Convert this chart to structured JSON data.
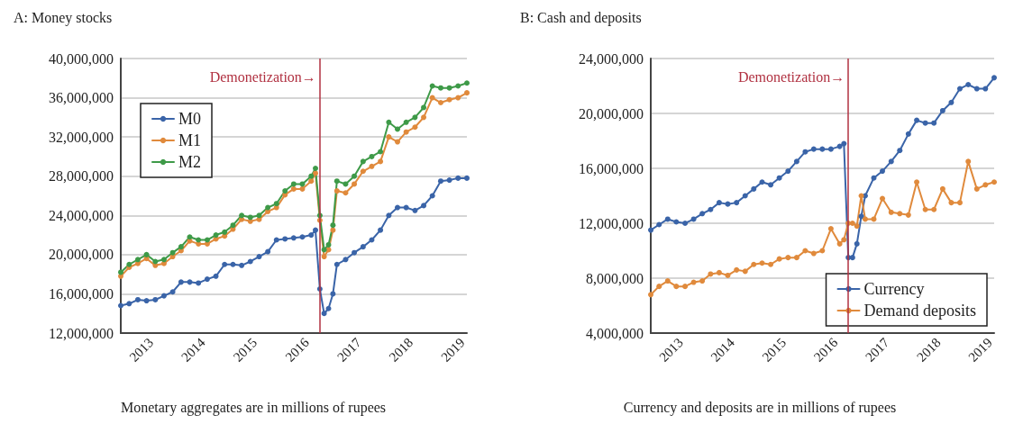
{
  "chart_data": [
    {
      "type": "line",
      "title": "A: Money stocks",
      "annotations": [
        "Monetary aggregates are in millions of rupees"
      ],
      "x": [
        "2013-01",
        "2013-03",
        "2013-05",
        "2013-07",
        "2013-09",
        "2013-11",
        "2014-01",
        "2014-03",
        "2014-05",
        "2014-07",
        "2014-09",
        "2014-11",
        "2015-01",
        "2015-03",
        "2015-05",
        "2015-07",
        "2015-09",
        "2015-11",
        "2016-01",
        "2016-03",
        "2016-05",
        "2016-07",
        "2016-09",
        "2016-10",
        "2016-11",
        "2016-12",
        "2017-01",
        "2017-02",
        "2017-03",
        "2017-05",
        "2017-07",
        "2017-09",
        "2017-11",
        "2018-01",
        "2018-03",
        "2018-05",
        "2018-07",
        "2018-09",
        "2018-11",
        "2019-01",
        "2019-03",
        "2019-05",
        "2019-07",
        "2019-09"
      ],
      "series": [
        {
          "name": "M0",
          "color": "#3a64a8",
          "values": [
            14800000,
            15000000,
            15400000,
            15300000,
            15400000,
            15800000,
            16200000,
            17200000,
            17200000,
            17100000,
            17500000,
            17800000,
            19000000,
            19000000,
            18900000,
            19300000,
            19800000,
            20300000,
            21500000,
            21600000,
            21700000,
            21800000,
            22000000,
            22500000,
            16500000,
            14000000,
            14500000,
            16000000,
            19000000,
            19500000,
            20200000,
            20800000,
            21500000,
            22500000,
            24000000,
            24800000,
            24800000,
            24500000,
            25000000,
            26000000,
            27500000,
            27600000,
            27800000,
            27800000
          ]
        },
        {
          "name": "M1",
          "color": "#e08a3c",
          "values": [
            17800000,
            18700000,
            19100000,
            19600000,
            18900000,
            19100000,
            19800000,
            20400000,
            21400000,
            21100000,
            21100000,
            21600000,
            21900000,
            22600000,
            23600000,
            23400000,
            23600000,
            24400000,
            24800000,
            26100000,
            26700000,
            26700000,
            27500000,
            28300000,
            23500000,
            19800000,
            20500000,
            22500000,
            26500000,
            26300000,
            27200000,
            28500000,
            29000000,
            29500000,
            32000000,
            31500000,
            32500000,
            33000000,
            34000000,
            36000000,
            35500000,
            35800000,
            36000000,
            36500000
          ]
        },
        {
          "name": "M2",
          "color": "#3e9a48",
          "values": [
            18200000,
            19000000,
            19500000,
            20000000,
            19300000,
            19500000,
            20200000,
            20800000,
            21800000,
            21500000,
            21500000,
            22000000,
            22300000,
            23000000,
            24000000,
            23800000,
            24000000,
            24800000,
            25200000,
            26500000,
            27200000,
            27200000,
            28000000,
            28800000,
            24000000,
            20500000,
            21000000,
            23000000,
            27500000,
            27200000,
            28000000,
            29500000,
            30000000,
            30500000,
            33500000,
            32800000,
            33500000,
            34000000,
            35000000,
            37200000,
            37000000,
            37000000,
            37200000,
            37500000
          ]
        }
      ],
      "xlim": [
        "2013-01",
        "2019-09"
      ],
      "xticks": [
        {
          "value": "2013-08",
          "label": "2013"
        },
        {
          "value": "2014-08",
          "label": "2014"
        },
        {
          "value": "2015-08",
          "label": "2015"
        },
        {
          "value": "2016-08",
          "label": "2016"
        },
        {
          "value": "2017-08",
          "label": "2017"
        },
        {
          "value": "2018-08",
          "label": "2018"
        },
        {
          "value": "2019-08",
          "label": "2019"
        }
      ],
      "ylim": [
        12000000,
        40000000
      ],
      "yticks": [
        {
          "value": 12000000,
          "label": "12,000,000"
        },
        {
          "value": 16000000,
          "label": "16,000,000"
        },
        {
          "value": 20000000,
          "label": "20,000,000"
        },
        {
          "value": 24000000,
          "label": "24,000,000"
        },
        {
          "value": 28000000,
          "label": "28,000,000"
        },
        {
          "value": 32000000,
          "label": "32,000,000"
        },
        {
          "value": 36000000,
          "label": "36,000,000"
        },
        {
          "value": 40000000,
          "label": "40,000,000"
        }
      ],
      "ref_lines": [
        {
          "axis": "x",
          "value": "2016-11",
          "label": "Demonetization→",
          "color": "#b03040"
        }
      ],
      "grid": "y",
      "legend": "top left",
      "marker": "circle",
      "line_style": "solid"
    },
    {
      "type": "line",
      "title": "B: Cash and deposits",
      "annotations": [
        "Currency and deposits are in millions of rupees"
      ],
      "x": [
        "2013-01",
        "2013-03",
        "2013-05",
        "2013-07",
        "2013-09",
        "2013-11",
        "2014-01",
        "2014-03",
        "2014-05",
        "2014-07",
        "2014-09",
        "2014-11",
        "2015-01",
        "2015-03",
        "2015-05",
        "2015-07",
        "2015-09",
        "2015-11",
        "2016-01",
        "2016-03",
        "2016-05",
        "2016-07",
        "2016-09",
        "2016-10",
        "2016-11",
        "2016-12",
        "2017-01",
        "2017-02",
        "2017-03",
        "2017-05",
        "2017-07",
        "2017-09",
        "2017-11",
        "2018-01",
        "2018-03",
        "2018-05",
        "2018-07",
        "2018-09",
        "2018-11",
        "2019-01",
        "2019-03",
        "2019-05",
        "2019-07",
        "2019-09"
      ],
      "series": [
        {
          "name": "Currency",
          "color": "#3a64a8",
          "values": [
            11500000,
            11900000,
            12300000,
            12100000,
            12000000,
            12300000,
            12700000,
            13000000,
            13500000,
            13400000,
            13500000,
            14000000,
            14500000,
            15000000,
            14800000,
            15300000,
            15800000,
            16500000,
            17200000,
            17400000,
            17400000,
            17400000,
            17600000,
            17800000,
            9500000,
            9500000,
            10500000,
            12500000,
            14000000,
            15300000,
            15800000,
            16500000,
            17300000,
            18500000,
            19500000,
            19300000,
            19300000,
            20200000,
            20800000,
            21800000,
            22100000,
            21800000,
            21800000,
            22600000
          ]
        },
        {
          "name": "Demand deposits",
          "color": "#e08a3c",
          "values": [
            6800000,
            7400000,
            7800000,
            7400000,
            7400000,
            7700000,
            7800000,
            8300000,
            8400000,
            8200000,
            8600000,
            8500000,
            9000000,
            9100000,
            9000000,
            9400000,
            9500000,
            9500000,
            10000000,
            9800000,
            10000000,
            11600000,
            10500000,
            10800000,
            12000000,
            12000000,
            11800000,
            14000000,
            12300000,
            12300000,
            13800000,
            12800000,
            12700000,
            12600000,
            15000000,
            13000000,
            13000000,
            14500000,
            13500000,
            13500000,
            16500000,
            14500000,
            14800000,
            15000000
          ]
        }
      ],
      "xlim": [
        "2013-01",
        "2019-09"
      ],
      "xticks": [
        {
          "value": "2013-08",
          "label": "2013"
        },
        {
          "value": "2014-08",
          "label": "2014"
        },
        {
          "value": "2015-08",
          "label": "2015"
        },
        {
          "value": "2016-08",
          "label": "2016"
        },
        {
          "value": "2017-08",
          "label": "2017"
        },
        {
          "value": "2018-08",
          "label": "2018"
        },
        {
          "value": "2019-08",
          "label": "2019"
        }
      ],
      "ylim": [
        4000000,
        24000000
      ],
      "yticks": [
        {
          "value": 4000000,
          "label": "4,000,000"
        },
        {
          "value": 8000000,
          "label": "8,000,000"
        },
        {
          "value": 12000000,
          "label": "12,000,000"
        },
        {
          "value": 16000000,
          "label": "16,000,000"
        },
        {
          "value": 20000000,
          "label": "20,000,000"
        },
        {
          "value": 24000000,
          "label": "24,000,000"
        }
      ],
      "ref_lines": [
        {
          "axis": "x",
          "value": "2016-11",
          "label": "Demonetization→",
          "color": "#b03040"
        }
      ],
      "grid": "y",
      "legend": "bottom right",
      "marker": "circle",
      "line_style": "solid"
    }
  ]
}
